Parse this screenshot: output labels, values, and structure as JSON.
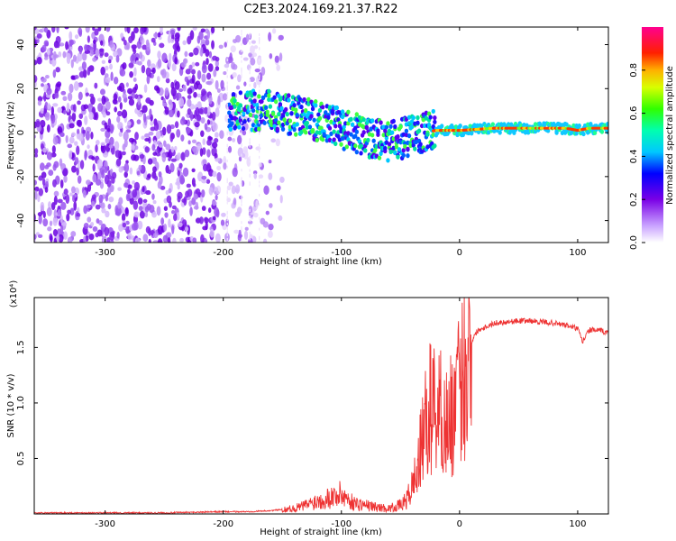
{
  "title": "C2E3.2024.169.21.37.R22",
  "chart_data": [
    {
      "type": "heatmap",
      "xlabel": "Height of straight line (km)",
      "ylabel": "Frequency (Hz)",
      "xlim": [
        -360,
        126
      ],
      "ylim": [
        -50,
        48
      ],
      "xticks": [
        -300,
        -200,
        -100,
        0,
        100
      ],
      "yticks": [
        -40,
        -20,
        0,
        20,
        40
      ],
      "colorbar": {
        "label": "Normalized spectral amplitude",
        "range": [
          0.0,
          1.0
        ],
        "ticks": [
          0.0,
          0.2,
          0.4,
          0.6,
          0.8
        ],
        "colormap": "rainbow (purple-blue-cyan-green-yellow-red-magenta)"
      },
      "ridge": {
        "x": [
          -190,
          -160,
          -140,
          -120,
          -100,
          -80,
          -60,
          -50,
          -40,
          -30,
          -20,
          0,
          30,
          60,
          90,
          100,
          110,
          126
        ],
        "y": [
          10,
          10,
          8,
          5,
          2,
          -2,
          -4,
          -3,
          -1,
          0,
          1,
          1,
          2,
          2,
          2,
          1,
          2,
          2
        ]
      },
      "grid": false
    },
    {
      "type": "line",
      "xlabel": "Height of straight line (km)",
      "ylabel": "SNR (10 * v/v)",
      "y_multiplier": "(x10⁴)",
      "xlim": [
        -360,
        126
      ],
      "ylim": [
        0,
        1.95
      ],
      "xticks": [
        -300,
        -200,
        -100,
        0,
        100
      ],
      "yticks": [
        0.5,
        1.0,
        1.5
      ],
      "color": "#ee3333",
      "series": [
        {
          "x": [
            -360,
            -300,
            -250,
            -200,
            -180,
            -160,
            -140,
            -130,
            -120,
            -110,
            -100,
            -95,
            -90,
            -80,
            -70,
            -60,
            -50,
            -45,
            -40,
            -35,
            -30,
            -25,
            -20,
            -15,
            -10,
            -5,
            0,
            5,
            10,
            15,
            20,
            25,
            30,
            40,
            50,
            60,
            70,
            80,
            90,
            100,
            104,
            110,
            120,
            126
          ],
          "y": [
            0.01,
            0.01,
            0.01,
            0.02,
            0.02,
            0.03,
            0.05,
            0.08,
            0.12,
            0.15,
            0.18,
            0.14,
            0.1,
            0.08,
            0.06,
            0.05,
            0.08,
            0.12,
            0.25,
            0.45,
            0.75,
            0.95,
            1.0,
            0.9,
            0.8,
            0.95,
            1.1,
            1.35,
            1.55,
            1.65,
            1.68,
            1.7,
            1.72,
            1.73,
            1.74,
            1.74,
            1.73,
            1.72,
            1.7,
            1.67,
            1.55,
            1.66,
            1.65,
            1.63
          ]
        }
      ],
      "grid": false
    }
  ]
}
